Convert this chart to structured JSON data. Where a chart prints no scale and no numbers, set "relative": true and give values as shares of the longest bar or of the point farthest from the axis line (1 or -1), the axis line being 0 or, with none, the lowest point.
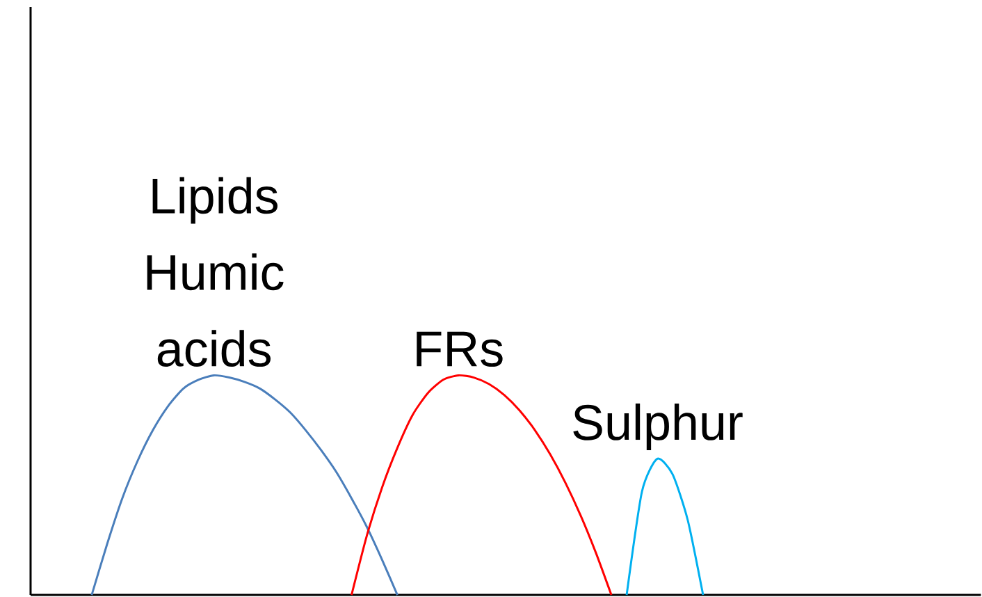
{
  "chart_data": {
    "type": "line",
    "relative": true,
    "tick_labels": false,
    "marker": "none",
    "line_style": "solid",
    "categories": [
      null,
      null,
      null,
      null,
      null,
      null,
      null,
      null,
      null,
      null,
      null,
      null,
      null,
      null,
      null,
      null,
      null,
      null,
      null,
      null,
      null,
      null,
      null,
      null,
      null,
      null,
      null,
      null,
      null,
      null,
      null,
      null,
      null,
      null,
      null,
      null,
      null,
      null,
      null,
      null,
      null,
      null,
      null,
      null,
      null,
      null,
      null,
      null,
      null,
      null,
      null,
      null,
      null,
      null,
      null,
      null,
      null,
      null,
      null,
      null,
      null,
      null,
      null
    ],
    "series": [
      {
        "name": "Lipids Humic acids",
        "color": "#4a7ebb",
        "values": [
          null,
          null,
          null,
          null,
          0,
          0.23,
          0.44,
          0.61,
          0.75,
          0.86,
          0.94,
          0.98,
          1,
          0.99,
          0.97,
          0.94,
          0.89,
          0.83,
          0.75,
          0.66,
          0.56,
          0.44,
          0.31,
          0.16,
          0,
          null,
          null,
          null,
          null,
          null,
          null,
          null,
          null,
          null,
          null,
          null,
          null,
          null,
          null,
          null,
          null,
          null,
          null,
          null,
          null,
          null,
          null,
          null,
          null,
          null,
          null,
          null,
          null,
          null,
          null,
          null,
          null,
          null,
          null,
          null,
          null,
          null,
          null
        ]
      },
      {
        "name": "FRs",
        "color": "#ff0000",
        "values": [
          null,
          null,
          null,
          null,
          null,
          null,
          null,
          null,
          null,
          null,
          null,
          null,
          null,
          null,
          null,
          null,
          null,
          null,
          null,
          null,
          null,
          0,
          0.27,
          0.49,
          0.67,
          0.82,
          0.92,
          0.98,
          1,
          0.99,
          0.96,
          0.91,
          0.84,
          0.75,
          0.64,
          0.51,
          0.36,
          0.19,
          0,
          null,
          null,
          null,
          null,
          null,
          null,
          null,
          null,
          null,
          null,
          null,
          null,
          null,
          null,
          null,
          null,
          null,
          null,
          null,
          null,
          null,
          null,
          null,
          null
        ]
      },
      {
        "name": "Sulphur",
        "color": "#00b0f0",
        "values": [
          null,
          null,
          null,
          null,
          null,
          null,
          null,
          null,
          null,
          null,
          null,
          null,
          null,
          null,
          null,
          null,
          null,
          null,
          null,
          null,
          null,
          null,
          null,
          null,
          null,
          null,
          null,
          null,
          null,
          null,
          null,
          null,
          null,
          null,
          null,
          null,
          null,
          null,
          null,
          0,
          0.47,
          0.62,
          0.55,
          0.34,
          0,
          null,
          null,
          null,
          null,
          null,
          null,
          null,
          null,
          null,
          null,
          null,
          null,
          null,
          null,
          null,
          null,
          null,
          null
        ]
      }
    ]
  }
}
